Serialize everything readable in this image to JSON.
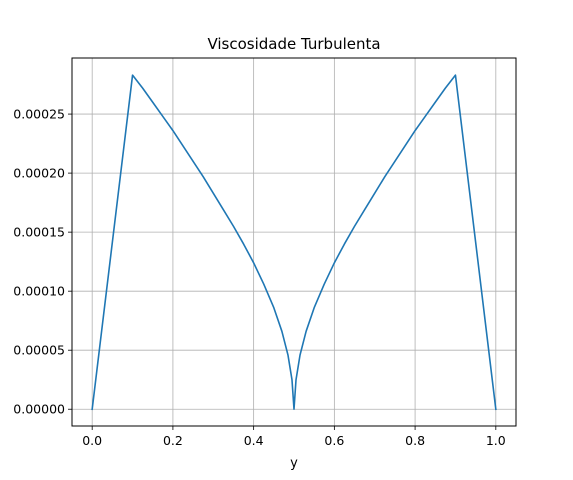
{
  "chart_data": {
    "type": "line",
    "title": "Viscosidade Turbulenta",
    "xlabel": "y",
    "ylabel": "",
    "xlim": [
      -0.05,
      1.05
    ],
    "ylim": [
      -1.42e-05,
      0.0002975
    ],
    "xticks": [
      0.0,
      0.2,
      0.4,
      0.6,
      0.8,
      1.0
    ],
    "xtick_labels": [
      "0.0",
      "0.2",
      "0.4",
      "0.6",
      "0.8",
      "1.0"
    ],
    "yticks": [
      0.0,
      5e-05,
      0.0001,
      0.00015,
      0.0002,
      0.00025
    ],
    "ytick_labels": [
      "0.00000",
      "0.00005",
      "0.00010",
      "0.00015",
      "0.00020",
      "0.00025"
    ],
    "grid": true,
    "legend": "none",
    "series": [
      {
        "color": "#1f77b4",
        "x": [
          0.0,
          0.1,
          0.125,
          0.15,
          0.175,
          0.2,
          0.225,
          0.25,
          0.275,
          0.3,
          0.325,
          0.35,
          0.375,
          0.4,
          0.425,
          0.45,
          0.47,
          0.485,
          0.495,
          0.5,
          0.5,
          0.505,
          0.515,
          0.53,
          0.55,
          0.575,
          0.6,
          0.625,
          0.65,
          0.675,
          0.7,
          0.725,
          0.75,
          0.775,
          0.8,
          0.825,
          0.85,
          0.875,
          0.9,
          1.0
        ],
        "y": [
          0.0,
          0.000283,
          0.000272,
          0.00026,
          0.000248,
          0.000236,
          0.000223,
          0.00021,
          0.000197,
          0.000183,
          0.000169,
          0.000155,
          0.00014,
          0.000124,
          0.000106,
          8.6e-05,
          6.6e-05,
          4.6e-05,
          2.5e-05,
          0.0,
          0.0,
          2.5e-05,
          4.6e-05,
          6.6e-05,
          8.6e-05,
          0.000106,
          0.000124,
          0.00014,
          0.000155,
          0.000169,
          0.000183,
          0.000197,
          0.00021,
          0.000223,
          0.000236,
          0.000248,
          0.00026,
          0.000272,
          0.000283,
          0.0
        ]
      }
    ]
  }
}
